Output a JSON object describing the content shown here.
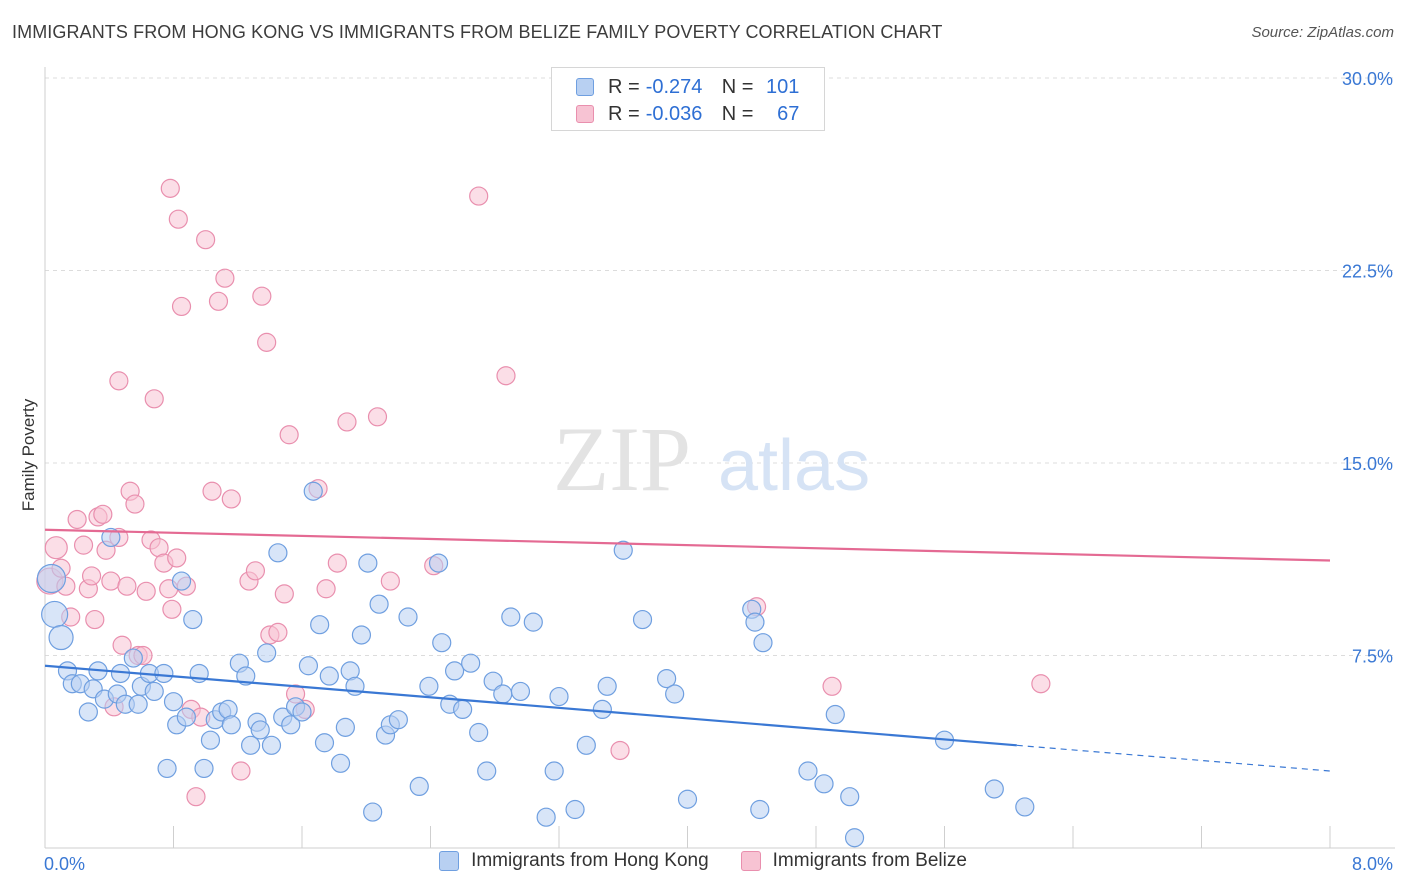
{
  "header": {
    "title": "IMMIGRANTS FROM HONG KONG VS IMMIGRANTS FROM BELIZE FAMILY POVERTY CORRELATION CHART",
    "source": "Source: ZipAtlas.com"
  },
  "watermark": {
    "zip": "ZIP",
    "atlas": "atlas"
  },
  "legend": {
    "rows": [
      {
        "r_label": "R =",
        "r_value": "-0.274",
        "n_label": "N =",
        "n_value": "101",
        "fill": "#b8d0f2",
        "stroke": "#6f9fe0"
      },
      {
        "r_label": "R =",
        "r_value": "-0.036",
        "n_label": "N =",
        "n_value": "67",
        "fill": "#f7c3d3",
        "stroke": "#e98fae"
      }
    ]
  },
  "bottom_legend": [
    {
      "label": "Immigrants from Hong Kong",
      "fill": "#b8d0f2",
      "stroke": "#6f9fe0"
    },
    {
      "label": "Immigrants from Belize",
      "fill": "#f7c3d3",
      "stroke": "#e98fae"
    }
  ],
  "chart_data": {
    "type": "scatter",
    "title": "IMMIGRANTS FROM HONG KONG VS IMMIGRANTS FROM BELIZE FAMILY POVERTY CORRELATION CHART",
    "xlabel": "",
    "ylabel": "Family Poverty",
    "xlim": [
      0,
      8
    ],
    "ylim": [
      0,
      30
    ],
    "x_tick_labels": [
      {
        "value": 0,
        "label": "0.0%"
      },
      {
        "value": 8,
        "label": "8.0%"
      }
    ],
    "y_tick_labels": [
      {
        "value": 7.5,
        "label": "7.5%"
      },
      {
        "value": 15,
        "label": "15.0%"
      },
      {
        "value": 22.5,
        "label": "22.5%"
      },
      {
        "value": 30,
        "label": "30.0%"
      }
    ],
    "grid": true,
    "legend_position": "top-center",
    "series": [
      {
        "name": "Immigrants from Hong Kong",
        "color": "#3a78d4",
        "fill": "#b8d0f2",
        "stroke": "#6f9fe0",
        "trend": {
          "x0": 0,
          "y0": 7.1,
          "x1": 6.05,
          "y1": 4.0,
          "dash_to_x": 8,
          "dash_to_y": 3.0
        },
        "points": [
          [
            0.04,
            10.5
          ],
          [
            0.06,
            9.1
          ],
          [
            0.1,
            8.2
          ],
          [
            0.14,
            6.9
          ],
          [
            0.17,
            6.4
          ],
          [
            0.22,
            6.4
          ],
          [
            0.27,
            5.3
          ],
          [
            0.3,
            6.2
          ],
          [
            0.33,
            6.9
          ],
          [
            0.37,
            5.8
          ],
          [
            0.41,
            12.1
          ],
          [
            0.45,
            6.0
          ],
          [
            0.47,
            6.8
          ],
          [
            0.5,
            5.6
          ],
          [
            0.55,
            7.4
          ],
          [
            0.58,
            5.6
          ],
          [
            0.6,
            6.3
          ],
          [
            0.65,
            6.8
          ],
          [
            0.68,
            6.1
          ],
          [
            0.74,
            6.8
          ],
          [
            0.76,
            3.1
          ],
          [
            0.8,
            5.7
          ],
          [
            0.82,
            4.8
          ],
          [
            0.85,
            10.4
          ],
          [
            0.88,
            5.1
          ],
          [
            0.92,
            8.9
          ],
          [
            0.96,
            6.8
          ],
          [
            0.99,
            3.1
          ],
          [
            1.03,
            4.2
          ],
          [
            1.06,
            5.0
          ],
          [
            1.1,
            5.3
          ],
          [
            1.14,
            5.4
          ],
          [
            1.16,
            4.8
          ],
          [
            1.21,
            7.2
          ],
          [
            1.25,
            6.7
          ],
          [
            1.28,
            4.0
          ],
          [
            1.32,
            4.9
          ],
          [
            1.34,
            4.6
          ],
          [
            1.38,
            7.6
          ],
          [
            1.41,
            4.0
          ],
          [
            1.45,
            11.5
          ],
          [
            1.48,
            5.1
          ],
          [
            1.53,
            4.8
          ],
          [
            1.56,
            5.5
          ],
          [
            1.6,
            5.3
          ],
          [
            1.64,
            7.1
          ],
          [
            1.67,
            13.9
          ],
          [
            1.71,
            8.7
          ],
          [
            1.74,
            4.1
          ],
          [
            1.77,
            6.7
          ],
          [
            1.84,
            3.3
          ],
          [
            1.87,
            4.7
          ],
          [
            1.9,
            6.9
          ],
          [
            1.93,
            6.3
          ],
          [
            1.97,
            8.3
          ],
          [
            2.01,
            11.1
          ],
          [
            2.04,
            1.4
          ],
          [
            2.08,
            9.5
          ],
          [
            2.12,
            4.4
          ],
          [
            2.15,
            4.8
          ],
          [
            2.2,
            5.0
          ],
          [
            2.26,
            9.0
          ],
          [
            2.33,
            2.4
          ],
          [
            2.39,
            6.3
          ],
          [
            2.45,
            11.1
          ],
          [
            2.47,
            8.0
          ],
          [
            2.52,
            5.6
          ],
          [
            2.55,
            6.9
          ],
          [
            2.6,
            5.4
          ],
          [
            2.65,
            7.2
          ],
          [
            2.7,
            4.5
          ],
          [
            2.75,
            3.0
          ],
          [
            2.79,
            6.5
          ],
          [
            2.85,
            6.0
          ],
          [
            2.9,
            9.0
          ],
          [
            2.96,
            6.1
          ],
          [
            3.04,
            8.8
          ],
          [
            3.12,
            1.2
          ],
          [
            3.17,
            3.0
          ],
          [
            3.2,
            5.9
          ],
          [
            3.3,
            1.5
          ],
          [
            3.37,
            4.0
          ],
          [
            3.47,
            5.4
          ],
          [
            3.5,
            6.3
          ],
          [
            3.6,
            11.6
          ],
          [
            3.72,
            8.9
          ],
          [
            3.87,
            6.6
          ],
          [
            3.92,
            6.0
          ],
          [
            4.0,
            1.9
          ],
          [
            4.4,
            9.3
          ],
          [
            4.42,
            8.8
          ],
          [
            4.47,
            8.0
          ],
          [
            4.45,
            1.5
          ],
          [
            4.75,
            3.0
          ],
          [
            4.85,
            2.5
          ],
          [
            4.92,
            5.2
          ],
          [
            5.01,
            2.0
          ],
          [
            5.04,
            0.4
          ],
          [
            5.6,
            4.2
          ],
          [
            5.91,
            2.3
          ],
          [
            6.1,
            1.6
          ]
        ]
      },
      {
        "name": "Immigrants from Belize",
        "color": "#e46a93",
        "fill": "#f7c3d3",
        "stroke": "#e98fae",
        "trend": {
          "x0": 0,
          "y0": 12.4,
          "x1": 8,
          "y1": 11.2
        },
        "points": [
          [
            0.03,
            10.4
          ],
          [
            0.07,
            11.7
          ],
          [
            0.1,
            10.9
          ],
          [
            0.13,
            10.2
          ],
          [
            0.16,
            9.0
          ],
          [
            0.2,
            12.8
          ],
          [
            0.24,
            11.8
          ],
          [
            0.27,
            10.1
          ],
          [
            0.29,
            10.6
          ],
          [
            0.31,
            8.9
          ],
          [
            0.33,
            12.9
          ],
          [
            0.36,
            13.0
          ],
          [
            0.38,
            11.6
          ],
          [
            0.41,
            10.4
          ],
          [
            0.43,
            5.5
          ],
          [
            0.46,
            12.1
          ],
          [
            0.48,
            7.9
          ],
          [
            0.51,
            10.2
          ],
          [
            0.53,
            13.9
          ],
          [
            0.56,
            13.4
          ],
          [
            0.58,
            7.5
          ],
          [
            0.61,
            7.5
          ],
          [
            0.63,
            10.0
          ],
          [
            0.66,
            12.0
          ],
          [
            0.68,
            17.5
          ],
          [
            0.71,
            11.7
          ],
          [
            0.74,
            11.1
          ],
          [
            0.77,
            10.1
          ],
          [
            0.79,
            9.3
          ],
          [
            0.82,
            11.3
          ],
          [
            0.85,
            21.1
          ],
          [
            0.88,
            10.2
          ],
          [
            0.91,
            5.4
          ],
          [
            0.94,
            2.0
          ],
          [
            0.97,
            5.1
          ],
          [
            1.0,
            23.7
          ],
          [
            1.04,
            13.9
          ],
          [
            1.08,
            21.3
          ],
          [
            1.12,
            22.2
          ],
          [
            1.16,
            13.6
          ],
          [
            1.22,
            3.0
          ],
          [
            1.27,
            10.4
          ],
          [
            1.31,
            10.8
          ],
          [
            1.35,
            21.5
          ],
          [
            1.38,
            19.7
          ],
          [
            1.4,
            8.3
          ],
          [
            1.45,
            8.4
          ],
          [
            1.49,
            9.9
          ],
          [
            1.52,
            16.1
          ],
          [
            1.56,
            6.0
          ],
          [
            1.62,
            5.4
          ],
          [
            1.7,
            14.0
          ],
          [
            1.75,
            10.1
          ],
          [
            1.82,
            11.1
          ],
          [
            1.88,
            16.6
          ],
          [
            2.07,
            16.8
          ],
          [
            2.15,
            10.4
          ],
          [
            2.42,
            11.0
          ],
          [
            2.7,
            25.4
          ],
          [
            2.87,
            18.4
          ],
          [
            3.58,
            3.8
          ],
          [
            4.43,
            9.4
          ],
          [
            4.9,
            6.3
          ],
          [
            6.2,
            6.4
          ],
          [
            0.46,
            18.2
          ],
          [
            0.78,
            25.7
          ],
          [
            0.83,
            24.5
          ]
        ]
      }
    ]
  }
}
